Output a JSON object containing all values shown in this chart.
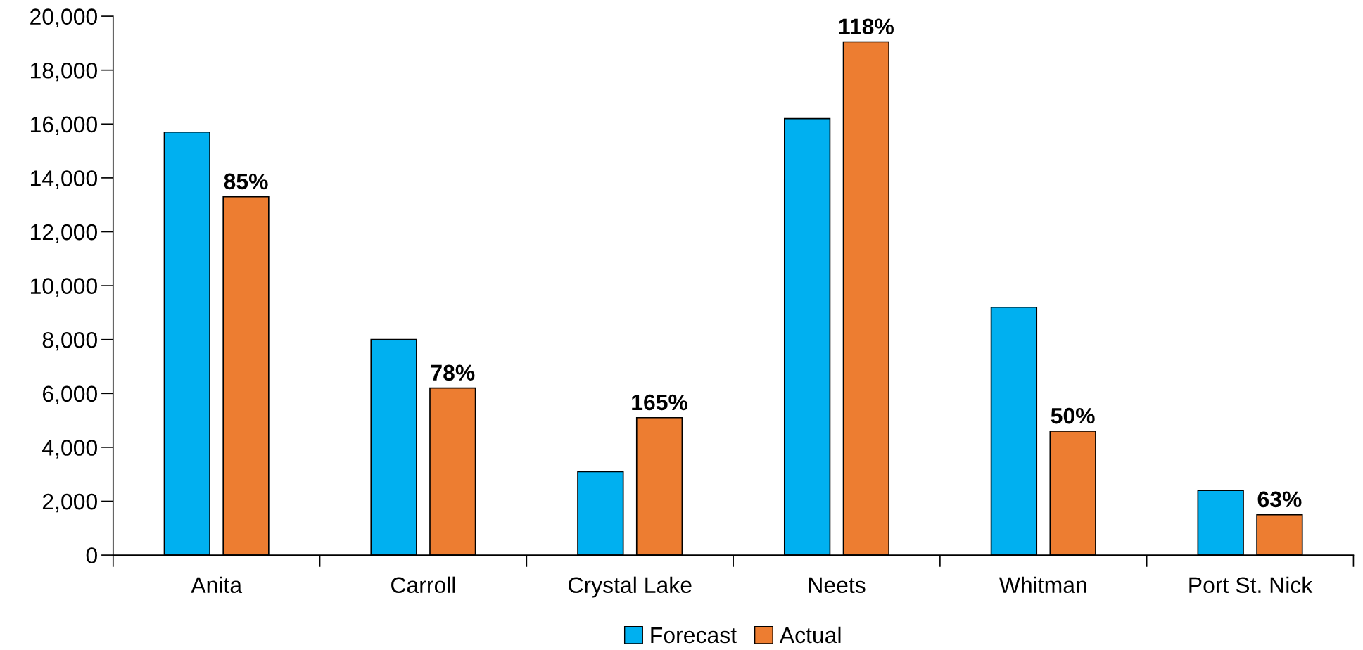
{
  "chart_data": {
    "type": "bar",
    "categories": [
      "Anita",
      "Carroll",
      "Crystal Lake",
      "Neets",
      "Whitman",
      "Port St. Nick"
    ],
    "series": [
      {
        "name": "Forecast",
        "color": "#00b0f0",
        "values": [
          15700,
          8000,
          3100,
          16200,
          9200,
          2400
        ]
      },
      {
        "name": "Actual",
        "color": "#ed7d31",
        "values": [
          13300,
          6200,
          5100,
          19050,
          4600,
          1500
        ]
      }
    ],
    "annotations": [
      "85%",
      "78%",
      "165%",
      "118%",
      "50%",
      "63%"
    ],
    "ylim": [
      0,
      20000
    ],
    "yticks": [
      {
        "value": 0,
        "label": "0"
      },
      {
        "value": 2000,
        "label": "2,000"
      },
      {
        "value": 4000,
        "label": "4,000"
      },
      {
        "value": 6000,
        "label": "6,000"
      },
      {
        "value": 8000,
        "label": "8,000"
      },
      {
        "value": 10000,
        "label": "10,000"
      },
      {
        "value": 12000,
        "label": "12,000"
      },
      {
        "value": 14000,
        "label": "14,000"
      },
      {
        "value": 16000,
        "label": "16,000"
      },
      {
        "value": 18000,
        "label": "18,000"
      },
      {
        "value": 20000,
        "label": "20,000"
      }
    ],
    "grid": false,
    "legend": "bottom"
  }
}
